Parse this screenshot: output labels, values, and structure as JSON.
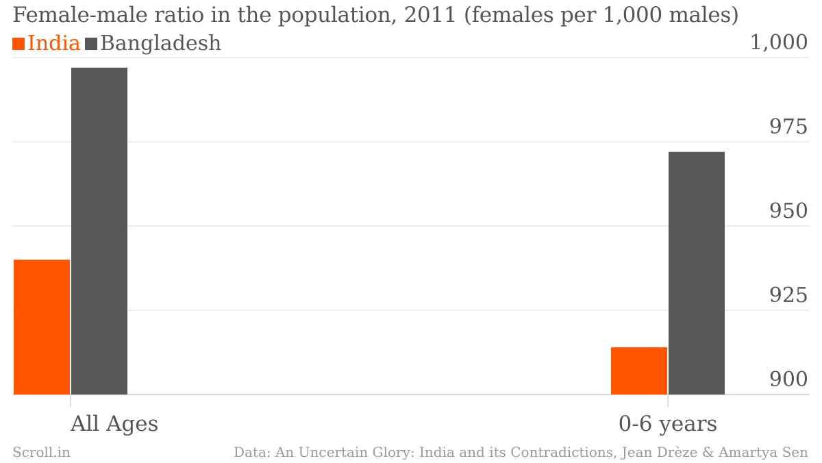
{
  "title": "Female-male ratio in the population, 2011 (females per 1,000 males)",
  "footer": {
    "brand": "Scroll.in",
    "source": "Data: An Uncertain Glory: India and its Contradictions, Jean Drèze & Amartya Sen"
  },
  "colors": {
    "India": "#ff5500",
    "Bangladesh": "#575757",
    "grid": "#dddddd",
    "axis_text": "#555555"
  },
  "chart_data": {
    "type": "bar",
    "title": "Female-male ratio in the population, 2011 (females per 1,000 males)",
    "categories": [
      "All Ages",
      "0-6 years"
    ],
    "series": [
      {
        "name": "India",
        "values": [
          940,
          914
        ]
      },
      {
        "name": "Bangladesh",
        "values": [
          997,
          972
        ]
      }
    ],
    "xlabel": "",
    "ylabel": "",
    "ylim": [
      900,
      1000
    ],
    "yticks": [
      900,
      925,
      950,
      975,
      1000
    ],
    "ytick_labels": [
      "900",
      "925",
      "950",
      "975",
      "1,000"
    ],
    "y_axis_side": "right",
    "grid": true,
    "legend": "top-left"
  }
}
